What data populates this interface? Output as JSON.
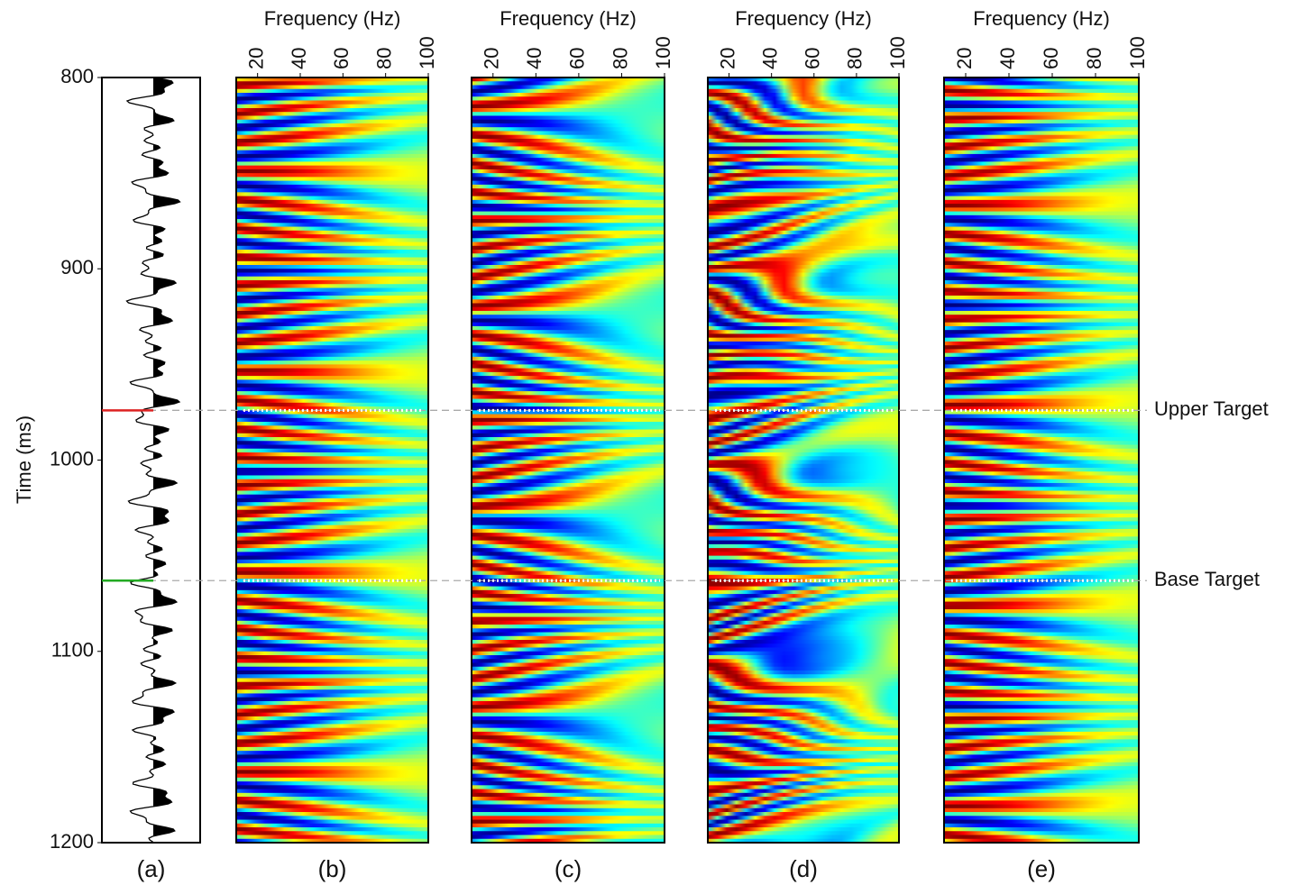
{
  "chart_data": {
    "type": "seismic-spectra",
    "ylabel": "Time (ms)",
    "ylim": [
      800,
      1200
    ],
    "yticks": [
      800,
      900,
      1000,
      1100,
      1200
    ],
    "markers": [
      {
        "label": "Upper Target",
        "value": 974
      },
      {
        "label": "Base Target",
        "value": 1063
      }
    ],
    "trace": {
      "label": "(a)"
    },
    "panels": [
      {
        "label": "(b)",
        "xlabel": "Frequency (Hz)",
        "xlim": [
          10,
          100
        ],
        "xticks": [
          20,
          40,
          60,
          80,
          100
        ]
      },
      {
        "label": "(c)",
        "xlabel": "Frequency (Hz)",
        "xlim": [
          10,
          100
        ],
        "xticks": [
          20,
          40,
          60,
          80,
          100
        ]
      },
      {
        "label": "(d)",
        "xlabel": "Frequency (Hz)",
        "xlim": [
          10,
          100
        ],
        "xticks": [
          20,
          40,
          60,
          80,
          100
        ]
      },
      {
        "label": "(e)",
        "xlabel": "Frequency (Hz)",
        "xlim": [
          10,
          100
        ],
        "xticks": [
          20,
          40,
          60,
          80,
          100
        ]
      }
    ]
  }
}
